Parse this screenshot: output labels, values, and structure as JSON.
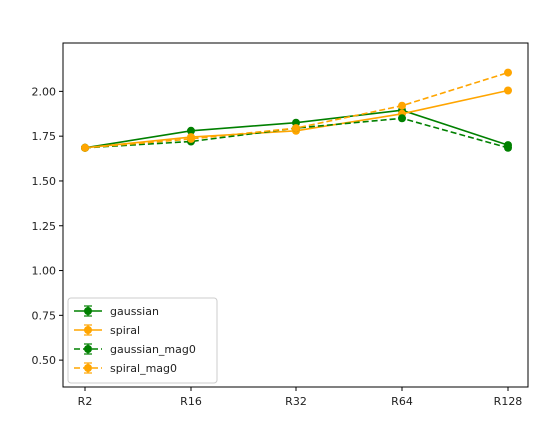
{
  "chart_data": {
    "type": "line",
    "title": "",
    "xlabel": "",
    "ylabel": "",
    "categories": [
      "R2",
      "R16",
      "R32",
      "R64",
      "R128"
    ],
    "ylim": [
      0.35,
      2.27
    ],
    "yticks": [
      "0.50",
      "0.75",
      "1.00",
      "1.25",
      "1.50",
      "1.75",
      "2.00"
    ],
    "grid": false,
    "legend_position": "lower-left",
    "series": [
      {
        "name": "gaussian",
        "values": [
          1.685,
          1.78,
          1.825,
          1.895,
          1.7
        ],
        "color": "#008000",
        "dash": "solid"
      },
      {
        "name": "spiral",
        "values": [
          1.685,
          1.745,
          1.78,
          1.875,
          2.005
        ],
        "color": "#FFA500",
        "dash": "solid"
      },
      {
        "name": "gaussian_mag0",
        "values": [
          1.685,
          1.72,
          1.795,
          1.85,
          1.685
        ],
        "color": "#008000",
        "dash": "dashed"
      },
      {
        "name": "spiral_mag0",
        "values": [
          1.685,
          1.735,
          1.795,
          1.92,
          2.105
        ],
        "color": "#FFA500",
        "dash": "dashed"
      }
    ]
  }
}
